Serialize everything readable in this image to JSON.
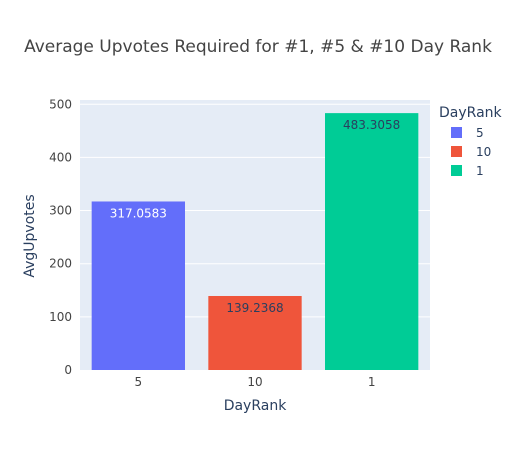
{
  "chart_data": {
    "type": "bar",
    "title": "Average Upvotes Required for #1, #5 & #10 Day Rank",
    "xlabel": "DayRank",
    "ylabel": "AvgUpvotes",
    "categories": [
      "5",
      "10",
      "1"
    ],
    "values": [
      317.0583,
      139.2368,
      483.3058
    ],
    "value_labels": [
      "317.0583",
      "139.2368",
      "483.3058"
    ],
    "colors": [
      "#636efa",
      "#ef553b",
      "#00cc96"
    ],
    "ylim": [
      0,
      508
    ],
    "yticks": [
      0,
      100,
      200,
      300,
      400,
      500
    ],
    "grid": true,
    "legend": {
      "title": "DayRank",
      "placement": "right",
      "entries": [
        {
          "label": "5",
          "color": "#636efa"
        },
        {
          "label": "10",
          "color": "#ef553b"
        },
        {
          "label": "1",
          "color": "#00cc96"
        }
      ]
    },
    "label_colors": [
      "#ffffff",
      "#2a3f5f",
      "#2a3f5f"
    ]
  },
  "style": {
    "plot_bg": "#e5ecf6",
    "grid_color": "#ffffff",
    "text_color": "#2a3f5f",
    "tick_color": "#444444"
  }
}
